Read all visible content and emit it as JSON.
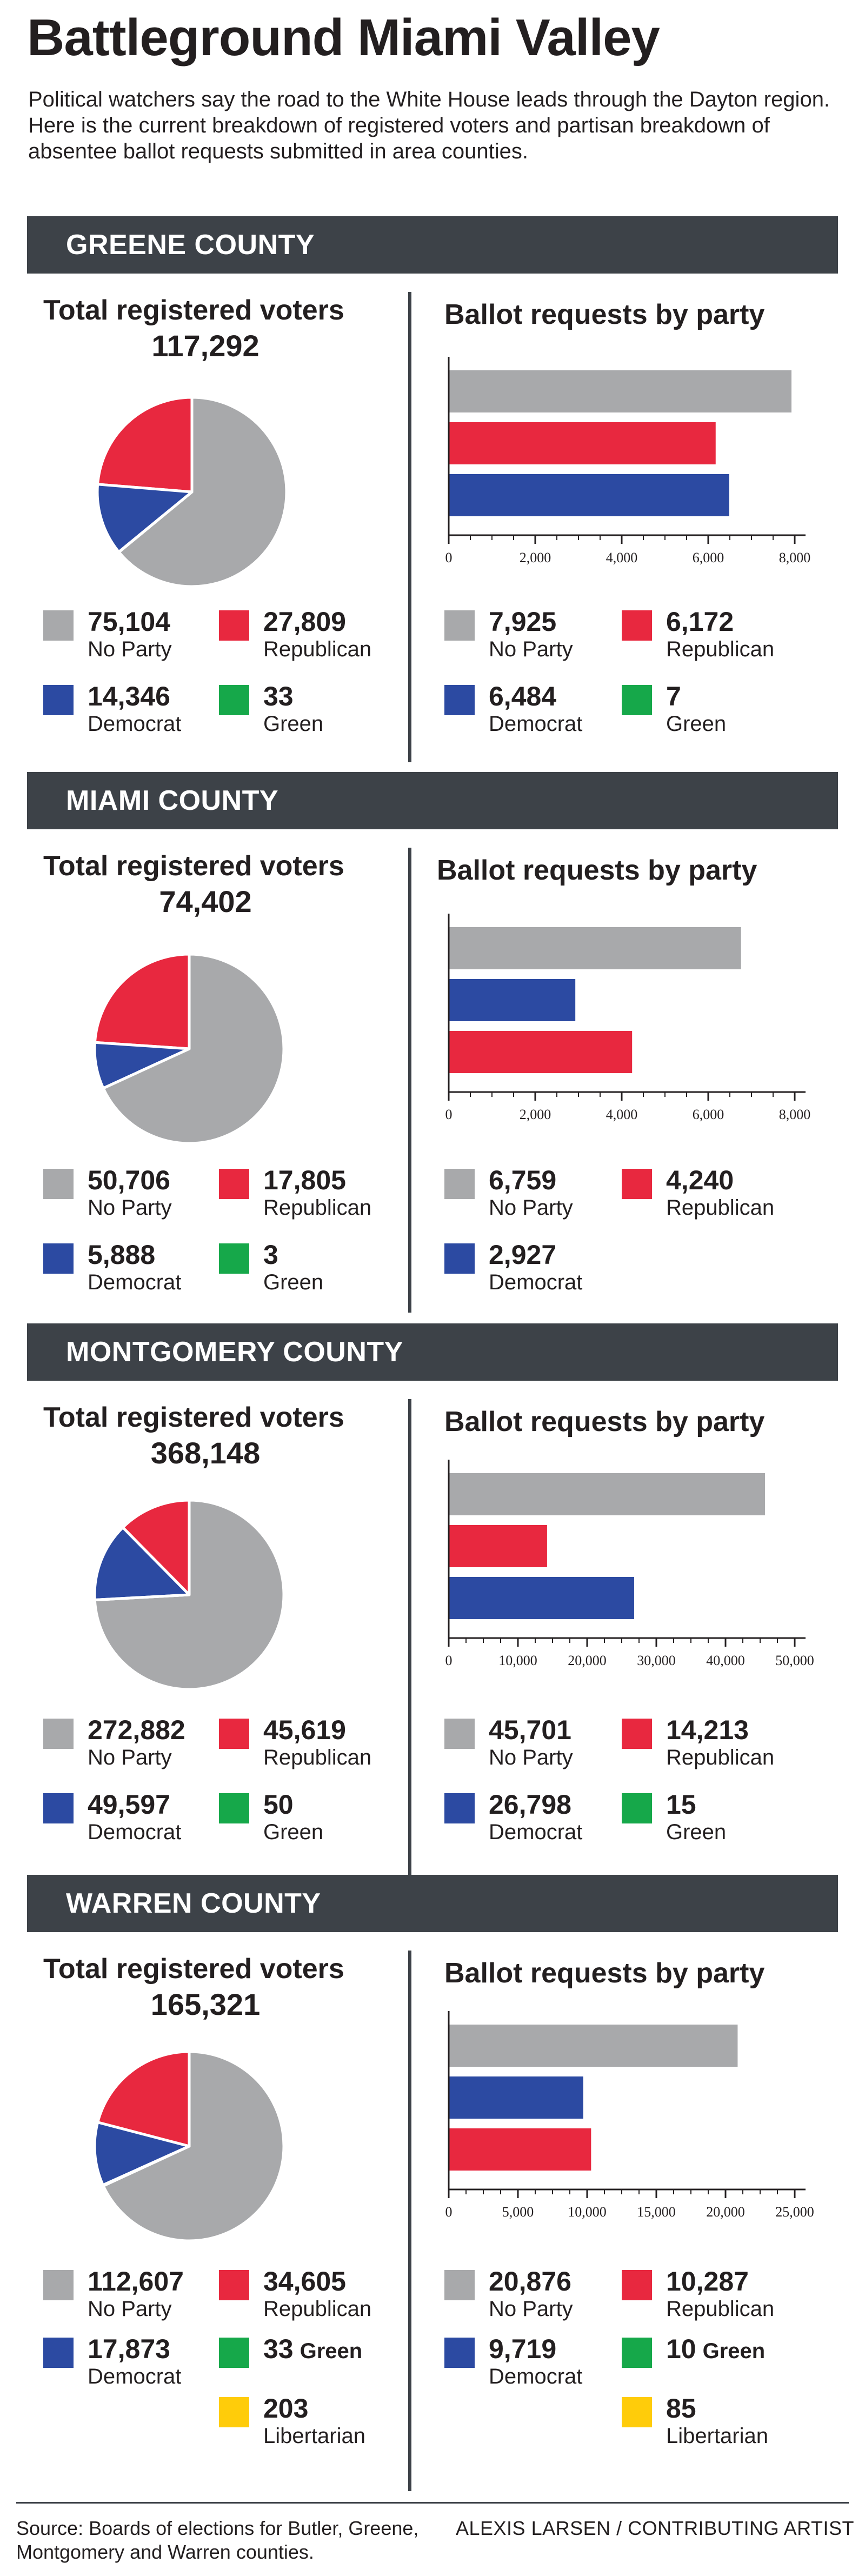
{
  "title": "Battleground Miami Valley",
  "intro": "Political watchers say the road to the White House leads through the Dayton region. Here is the current breakdown of registered voters and partisan breakdown of absentee ballot requests submitted in area counties.",
  "colors": {
    "No Party": "#a8a9ab",
    "Republican": "#e8283f",
    "Democrat": "#2c4aa2",
    "Green": "#16a84a",
    "Libertarian": "#ffcc0a",
    "band": "#3d4248"
  },
  "labels": {
    "registered": "Total registered voters",
    "ballots": "Ballot requests by party"
  },
  "counties": [
    {
      "name": "GREENE COUNTY",
      "registered_total": "117,292",
      "registered_legend": [
        {
          "value": "75,104",
          "label": "No Party",
          "party": "No Party"
        },
        {
          "value": "27,809",
          "label": "Republican",
          "party": "Republican"
        },
        {
          "value": "14,346",
          "label": "Democrat",
          "party": "Democrat"
        },
        {
          "value": "33",
          "label": "Green",
          "party": "Green"
        }
      ],
      "ballot_legend": [
        {
          "value": "7,925",
          "label": "No Party",
          "party": "No Party"
        },
        {
          "value": "6,172",
          "label": "Republican",
          "party": "Republican"
        },
        {
          "value": "6,484",
          "label": "Democrat",
          "party": "Democrat"
        },
        {
          "value": "7",
          "label": "Green",
          "party": "Green"
        }
      ]
    },
    {
      "name": "MIAMI COUNTY",
      "registered_total": "74,402",
      "registered_legend": [
        {
          "value": "50,706",
          "label": "No Party",
          "party": "No Party"
        },
        {
          "value": "17,805",
          "label": "Republican",
          "party": "Republican"
        },
        {
          "value": "5,888",
          "label": "Democrat",
          "party": "Democrat"
        },
        {
          "value": "3",
          "label": "Green",
          "party": "Green"
        }
      ],
      "ballot_legend": [
        {
          "value": "6,759",
          "label": "No Party",
          "party": "No Party"
        },
        {
          "value": "4,240",
          "label": "Republican",
          "party": "Republican"
        },
        {
          "value": "2,927",
          "label": "Democrat",
          "party": "Democrat"
        }
      ]
    },
    {
      "name": "MONTGOMERY COUNTY",
      "registered_total": "368,148",
      "registered_legend": [
        {
          "value": "272,882",
          "label": "No Party",
          "party": "No Party"
        },
        {
          "value": "45,619",
          "label": "Republican",
          "party": "Republican"
        },
        {
          "value": "49,597",
          "label": "Democrat",
          "party": "Democrat"
        },
        {
          "value": "50",
          "label": "Green",
          "party": "Green"
        }
      ],
      "ballot_legend": [
        {
          "value": "45,701",
          "label": "No Party",
          "party": "No Party"
        },
        {
          "value": "14,213",
          "label": "Republican",
          "party": "Republican"
        },
        {
          "value": "26,798",
          "label": "Democrat",
          "party": "Democrat"
        },
        {
          "value": "15",
          "label": "Green",
          "party": "Green"
        }
      ]
    },
    {
      "name": "WARREN COUNTY",
      "registered_total": "165,321",
      "registered_legend": [
        {
          "value": "112,607",
          "label": "No Party",
          "party": "No Party"
        },
        {
          "value": "34,605",
          "label": "Republican",
          "party": "Republican"
        },
        {
          "value": "17,873",
          "label": "Democrat",
          "party": "Democrat"
        },
        {
          "value": "33",
          "label": "Green",
          "party": "Green"
        },
        {
          "value": "203",
          "label": "Libertarian",
          "party": "Libertarian"
        }
      ],
      "ballot_legend": [
        {
          "value": "20,876",
          "label": "No Party",
          "party": "No Party"
        },
        {
          "value": "10,287",
          "label": "Republican",
          "party": "Republican"
        },
        {
          "value": "9,719",
          "label": "Democrat",
          "party": "Democrat"
        },
        {
          "value": "10",
          "label": "Green",
          "party": "Green"
        },
        {
          "value": "85",
          "label": "Libertarian",
          "party": "Libertarian"
        }
      ]
    }
  ],
  "chart_data": [
    {
      "type": "pie",
      "title": "Greene County - Total registered voters",
      "total": 117292,
      "labels": [
        "No Party",
        "Republican",
        "Democrat",
        "Green"
      ],
      "values": [
        75104,
        27809,
        14346,
        33
      ]
    },
    {
      "type": "bar",
      "title": "Greene County - Ballot requests by party",
      "orientation": "horizontal",
      "categories": [
        "No Party",
        "Republican",
        "Democrat"
      ],
      "values": [
        7925,
        6172,
        6484
      ],
      "xlim": [
        0,
        8000
      ],
      "xticks": [
        0,
        2000,
        4000,
        6000,
        8000
      ],
      "xtick_labels": [
        "0",
        "2,000",
        "4,000",
        "6,000",
        "8,000"
      ]
    },
    {
      "type": "pie",
      "title": "Miami County - Total registered voters",
      "total": 74402,
      "labels": [
        "No Party",
        "Republican",
        "Democrat",
        "Green"
      ],
      "values": [
        50706,
        17805,
        5888,
        3
      ]
    },
    {
      "type": "bar",
      "title": "Miami County - Ballot requests by party",
      "orientation": "horizontal",
      "categories": [
        "No Party",
        "Democrat",
        "Republican"
      ],
      "values": [
        6759,
        2927,
        4240
      ],
      "xlim": [
        0,
        8000
      ],
      "xticks": [
        0,
        2000,
        4000,
        6000,
        8000
      ],
      "xtick_labels": [
        "0",
        "2,000",
        "4,000",
        "6,000",
        "8,000"
      ]
    },
    {
      "type": "pie",
      "title": "Montgomery County - Total registered voters",
      "total": 368148,
      "labels": [
        "No Party",
        "Republican",
        "Democrat",
        "Green"
      ],
      "values": [
        272882,
        45619,
        49597,
        50
      ]
    },
    {
      "type": "bar",
      "title": "Montgomery County - Ballot requests by party",
      "orientation": "horizontal",
      "categories": [
        "No Party",
        "Republican",
        "Democrat"
      ],
      "values": [
        45701,
        14213,
        26798
      ],
      "xlim": [
        0,
        50000
      ],
      "xticks": [
        0,
        10000,
        20000,
        30000,
        40000,
        50000
      ],
      "xtick_labels": [
        "0",
        "10,000",
        "20,000",
        "30,000",
        "40,000",
        "50,000"
      ]
    },
    {
      "type": "pie",
      "title": "Warren County - Total registered voters",
      "total": 165321,
      "labels": [
        "No Party",
        "Republican",
        "Democrat",
        "Green",
        "Libertarian"
      ],
      "values": [
        112607,
        34605,
        17873,
        33,
        203
      ]
    },
    {
      "type": "bar",
      "title": "Warren County - Ballot requests by party",
      "orientation": "horizontal",
      "categories": [
        "No Party",
        "Democrat",
        "Republican"
      ],
      "values": [
        20876,
        9719,
        10287
      ],
      "xlim": [
        0,
        25000
      ],
      "xticks": [
        0,
        5000,
        10000,
        15000,
        20000,
        25000
      ],
      "xtick_labels": [
        "0",
        "5,000",
        "10,000",
        "15,000",
        "20,000",
        "25,000"
      ]
    }
  ],
  "source": "Source: Boards of elections for Butler, Greene, Montgomery and Warren counties.",
  "credit": "ALEXIS LARSEN / CONTRIBUTING ARTIST"
}
